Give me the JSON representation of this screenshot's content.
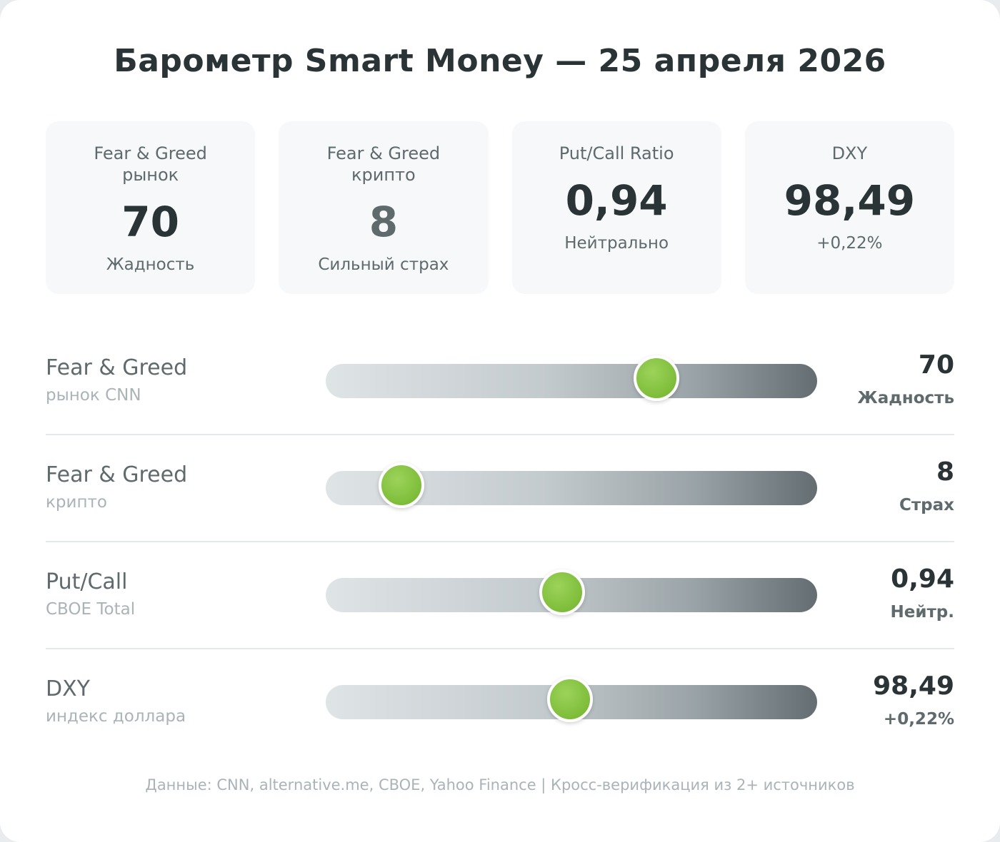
{
  "title": "Барометр Smart Money — 25 апреля 2026",
  "tiles": [
    {
      "label": "Fear & Greed\nрынок",
      "value": "70",
      "sub": "Жадность",
      "muted": false
    },
    {
      "label": "Fear & Greed\nкрипто",
      "value": "8",
      "sub": "Сильный страх",
      "muted": true
    },
    {
      "label": "Put/Call Ratio",
      "value": "0,94",
      "sub": "Нейтрально",
      "muted": false
    },
    {
      "label": "DXY",
      "value": "98,49",
      "sub": "+0,22%",
      "muted": false
    }
  ],
  "gauges": [
    {
      "label": "Fear & Greed",
      "sub": "рынок CNN",
      "value": "70",
      "status": "Жадность",
      "level": 0.7
    },
    {
      "label": "Fear & Greed",
      "sub": "крипто",
      "value": "8",
      "status": "Страх",
      "level": 0.08
    },
    {
      "label": "Put/Call",
      "sub": "CBOE Total",
      "value": "0,94",
      "status": "Нейтр.",
      "level": 0.47
    },
    {
      "label": "DXY",
      "sub": "индекс доллара",
      "value": "98,49",
      "status": "+0,22%",
      "level": 0.49
    }
  ],
  "footer": "Данные: CNN, alternative.me, CBOE, Yahoo Finance | Кросс-верификация из 2+ источников",
  "colors": {
    "accent": "#8cc84b",
    "text": "#2a3335",
    "muted": "#5f6a6d",
    "faint": "#aab4b8"
  }
}
